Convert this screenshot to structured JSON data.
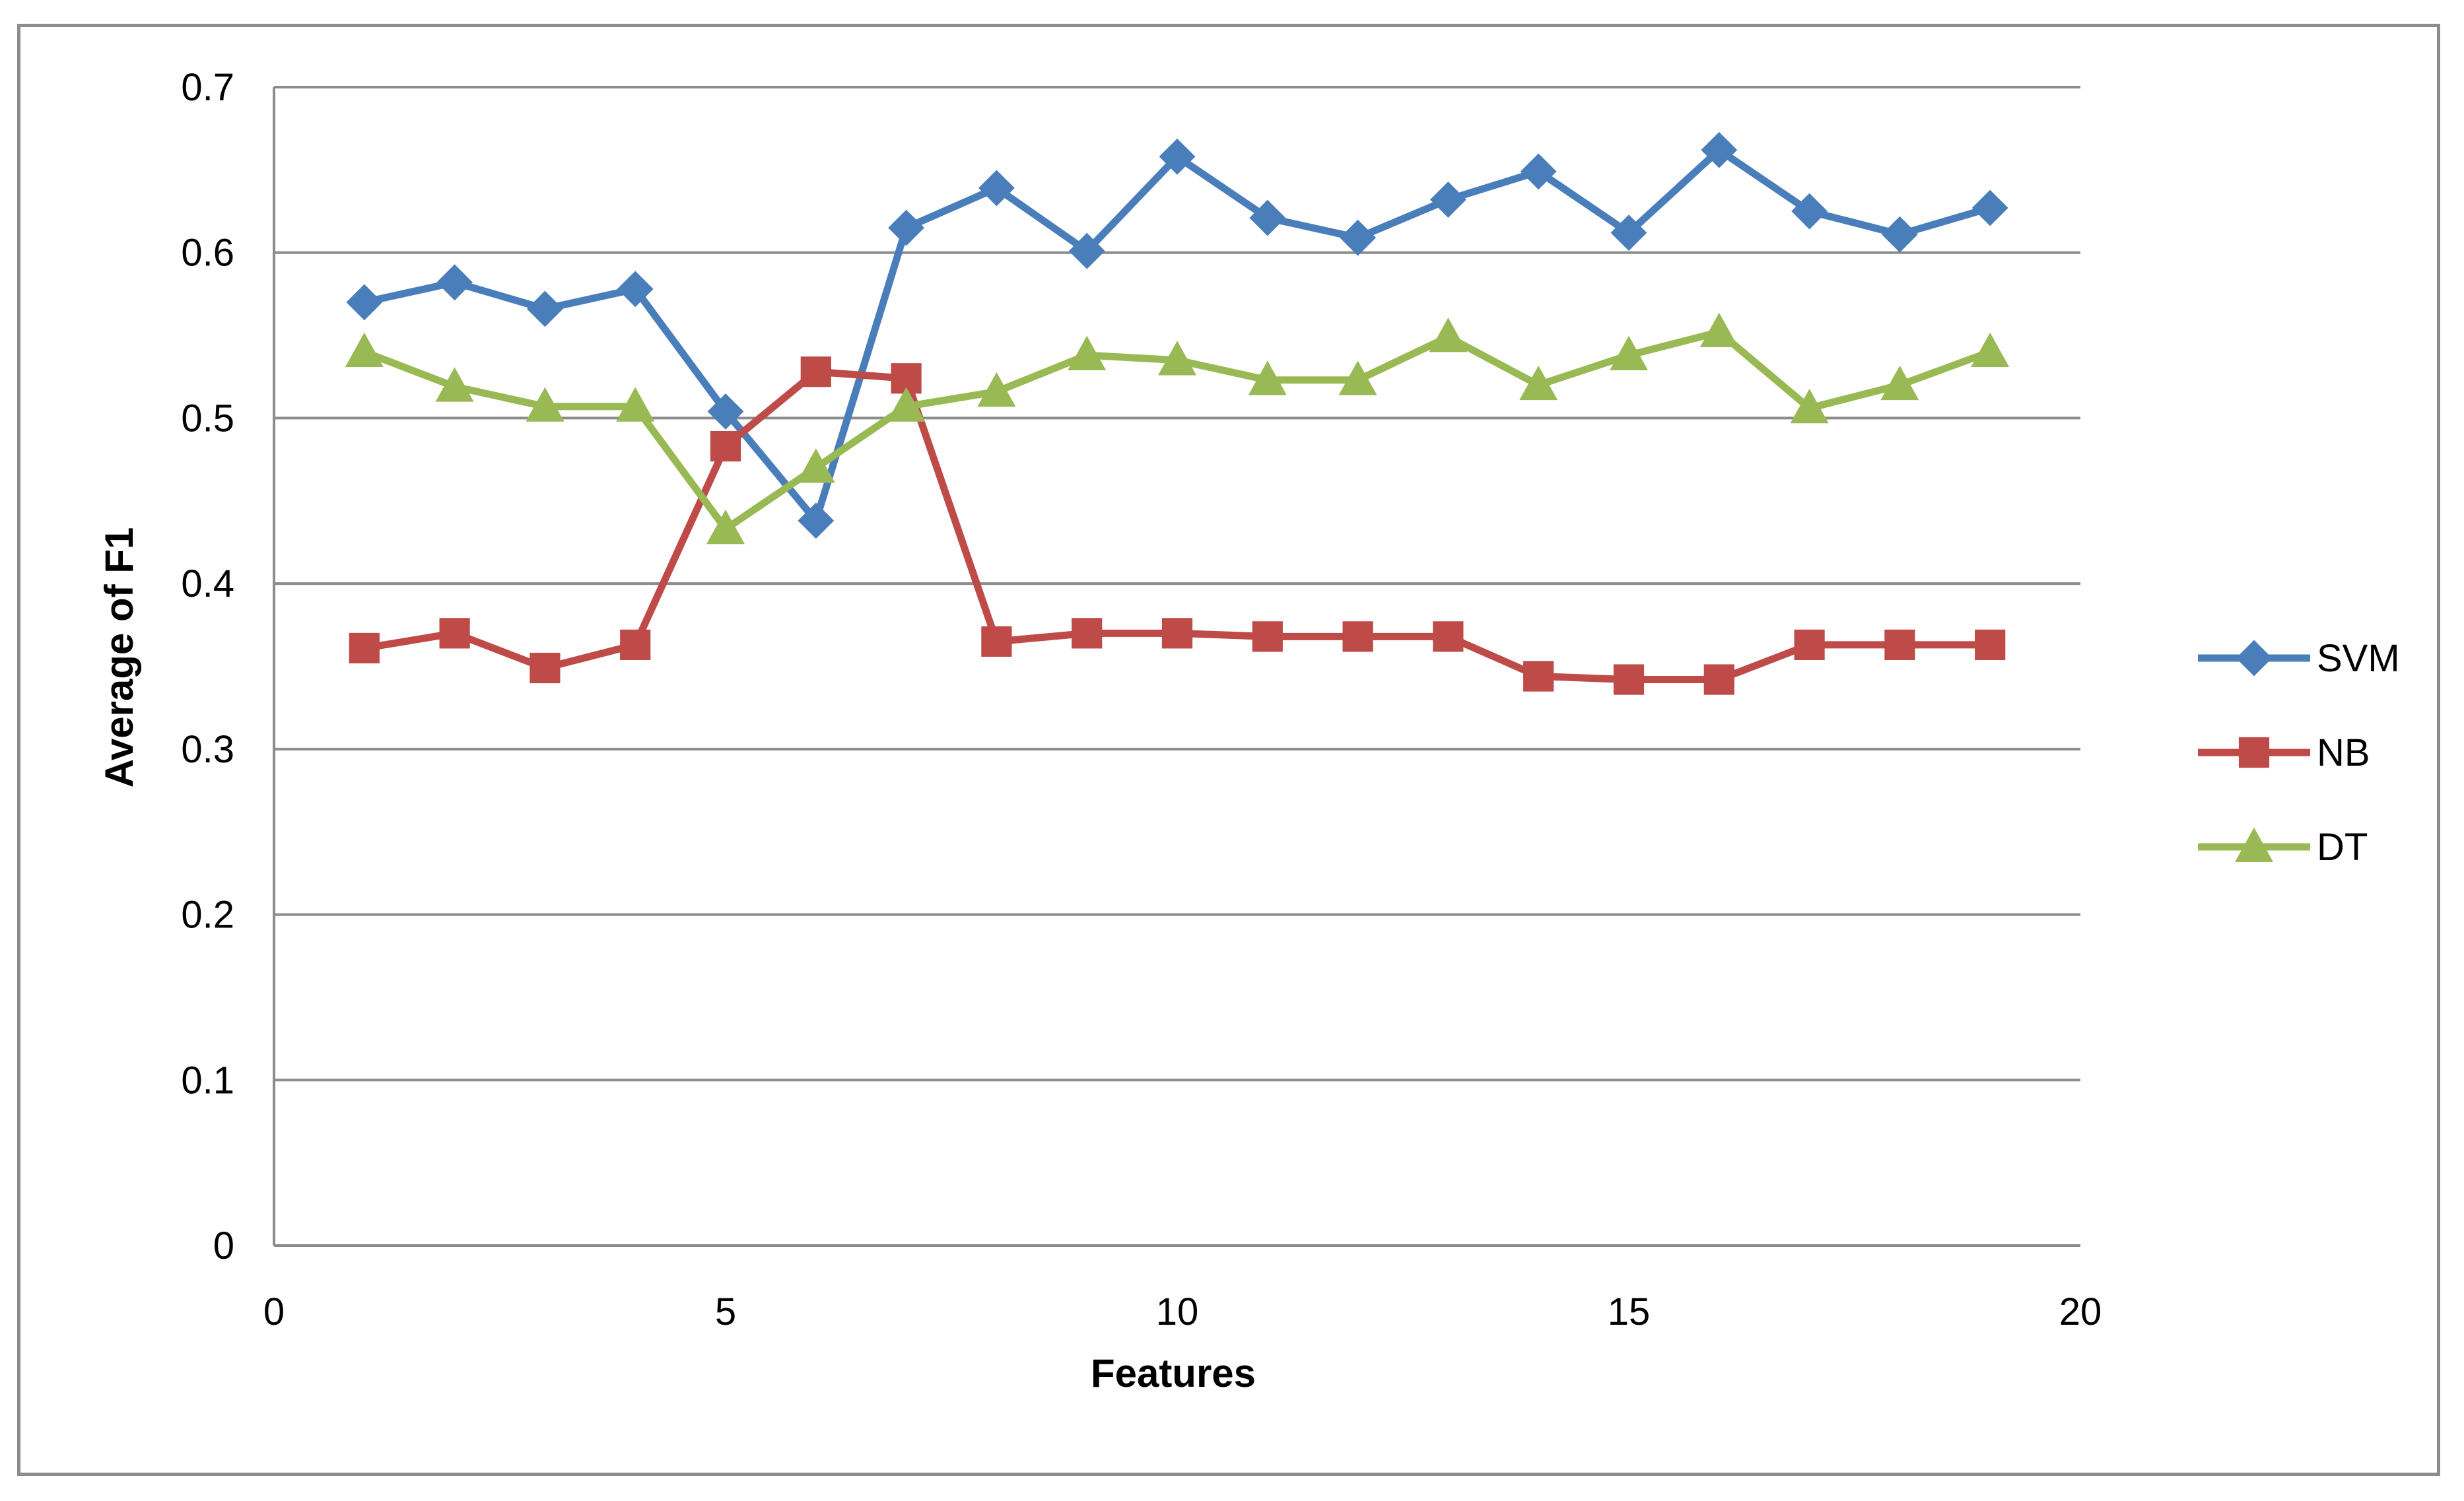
{
  "chart_data": {
    "type": "line",
    "title": "",
    "xlabel": "Features",
    "ylabel": "Average of F1",
    "xlim": [
      0,
      20
    ],
    "ylim": [
      0,
      0.7
    ],
    "x_ticks": [
      "0",
      "5",
      "10",
      "15",
      "20"
    ],
    "y_ticks": [
      "0",
      "0.1",
      "0.2",
      "0.3",
      "0.4",
      "0.5",
      "0.6",
      "0.7"
    ],
    "grid": "horizontal",
    "legend_position": "right",
    "x": [
      1,
      2,
      3,
      4,
      5,
      6,
      7,
      8,
      9,
      10,
      11,
      12,
      13,
      14,
      15,
      16,
      17,
      18,
      19
    ],
    "series": [
      {
        "name": "SVM",
        "color": "#4a7ebb",
        "marker": "diamond",
        "values": [
          0.57,
          0.582,
          0.566,
          0.578,
          0.504,
          0.438,
          0.615,
          0.639,
          0.601,
          0.658,
          0.621,
          0.609,
          0.632,
          0.649,
          0.612,
          0.662,
          0.625,
          0.611,
          0.627
        ]
      },
      {
        "name": "NB",
        "color": "#be4b48",
        "marker": "square",
        "values": [
          0.361,
          0.37,
          0.349,
          0.363,
          0.483,
          0.528,
          0.524,
          0.365,
          0.37,
          0.37,
          0.368,
          0.368,
          0.368,
          0.344,
          0.342,
          0.342,
          0.363,
          0.363,
          0.363
        ]
      },
      {
        "name": "DT",
        "color": "#98b954",
        "marker": "triangle",
        "values": [
          0.54,
          0.519,
          0.507,
          0.507,
          0.433,
          0.47,
          0.507,
          0.516,
          0.538,
          0.535,
          0.523,
          0.523,
          0.549,
          0.52,
          0.538,
          0.552,
          0.506,
          0.52,
          0.54
        ]
      }
    ]
  }
}
